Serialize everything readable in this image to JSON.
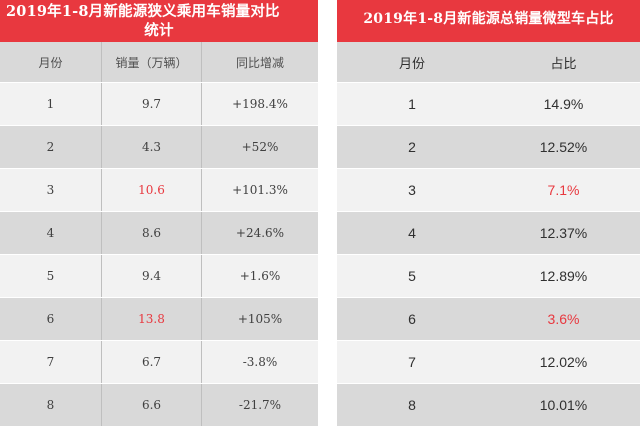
{
  "left_table": {
    "title_line1": "2019年1-8月新能源狭义乘用车销量对比",
    "title_line2": "统计",
    "headers": [
      "月份",
      "销量（万辆）",
      "同比增减"
    ],
    "rows": [
      {
        "month": "1",
        "sales": "9.7",
        "yoy": "+198.4%"
      },
      {
        "month": "2",
        "sales": "4.3",
        "yoy": "+52%"
      },
      {
        "month": "3",
        "sales": "10.6",
        "yoy": "+101.3%"
      },
      {
        "month": "4",
        "sales": "8.6",
        "yoy": "+24.6%"
      },
      {
        "month": "5",
        "sales": "9.4",
        "yoy": "+1.6%"
      },
      {
        "month": "6",
        "sales": "13.8",
        "yoy": "+105%"
      },
      {
        "month": "7",
        "sales": "6.7",
        "yoy": "-3.8%"
      },
      {
        "month": "8",
        "sales": "6.6",
        "yoy": "-21.7%"
      }
    ]
  },
  "right_table": {
    "title": "2019年1-8月新能源总销量微型车占比",
    "headers": [
      "月份",
      "占比"
    ],
    "rows": [
      {
        "month": "1",
        "share": "14.9%"
      },
      {
        "month": "2",
        "share": "12.52%"
      },
      {
        "month": "3",
        "share": "7.1%"
      },
      {
        "month": "4",
        "share": "12.37%"
      },
      {
        "month": "5",
        "share": "12.89%"
      },
      {
        "month": "6",
        "share": "3.6%"
      },
      {
        "month": "7",
        "share": "12.02%"
      },
      {
        "month": "8",
        "share": "10.01%"
      }
    ]
  },
  "colors": {
    "accent": "#e8383f",
    "row_light": "#f2f2f2",
    "row_dark": "#d9d9d9"
  }
}
